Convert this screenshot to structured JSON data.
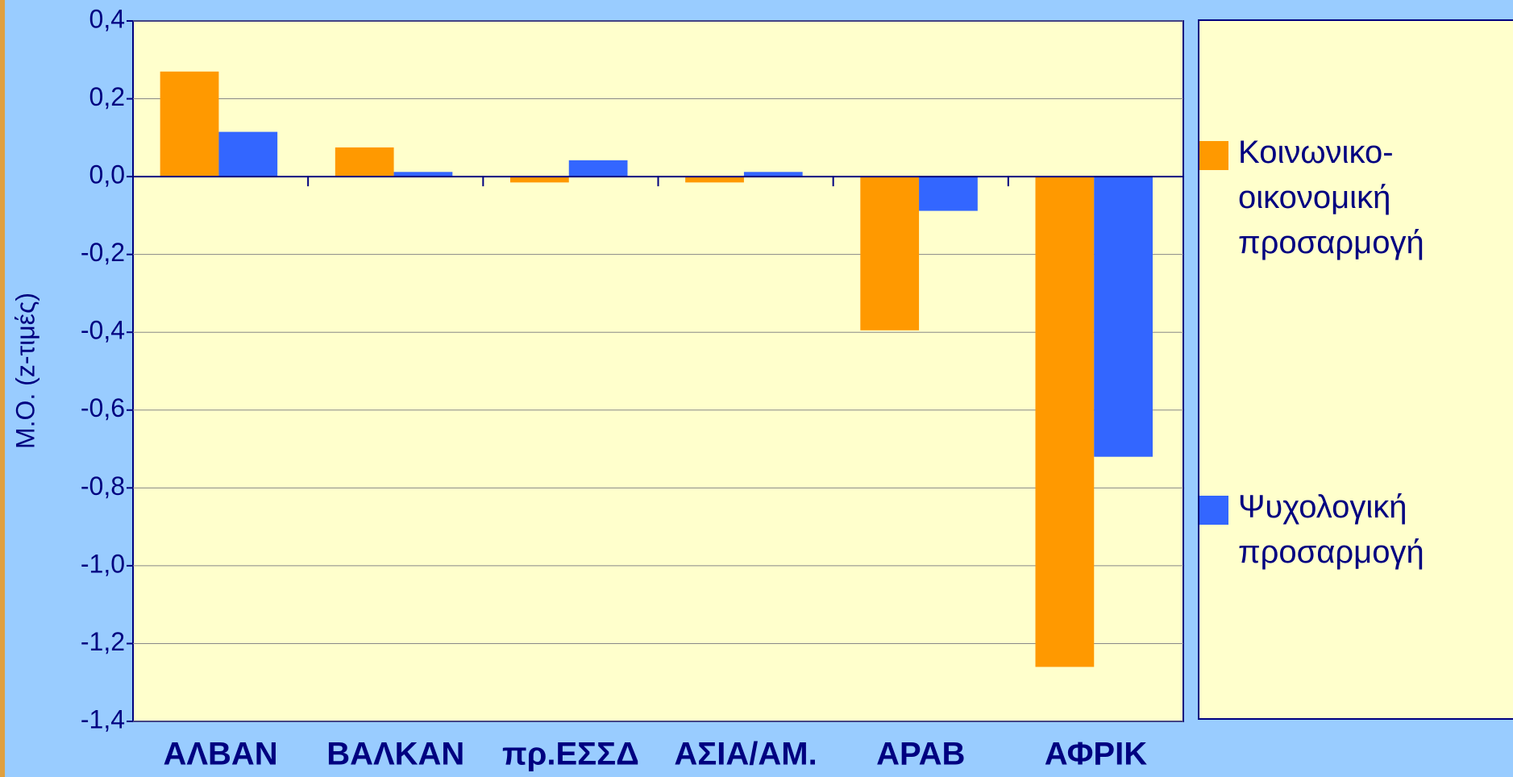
{
  "chart_data": {
    "type": "bar",
    "y_label": "Μ.Ο. (z-τιμές)",
    "categories": [
      "ΑΛΒΑΝ",
      "ΒΑΛΚΑΝ",
      "πρ.ΕΣΣΔ",
      "ΑΣΙΑ/ΑΜ.",
      "ΑΡΑΒ",
      "ΑΦΡΙΚ"
    ],
    "series": [
      {
        "name": "Κοινωνικο-οικονομική προσαρμογή",
        "color": "#ff9900",
        "values": [
          0.27,
          0.075,
          -0.015,
          -0.015,
          -0.395,
          -1.26
        ]
      },
      {
        "name": "Ψυχολογική προσαρμογή",
        "color": "#3366ff",
        "values": [
          0.115,
          0.012,
          0.042,
          0.012,
          -0.088,
          -0.72
        ]
      }
    ],
    "ylim": [
      -1.4,
      0.4
    ],
    "yticks": [
      {
        "value": -1.4,
        "label": "-1,4"
      },
      {
        "value": -1.2,
        "label": "-1,2"
      },
      {
        "value": -1.0,
        "label": "-1,0"
      },
      {
        "value": -0.8,
        "label": "-0,8"
      },
      {
        "value": -0.6,
        "label": "-0,6"
      },
      {
        "value": -0.4,
        "label": "-0,4"
      },
      {
        "value": -0.2,
        "label": "-0,2"
      },
      {
        "value": 0,
        "label": "0,0"
      },
      {
        "value": 0.2,
        "label": "0,2"
      },
      {
        "value": 0.4,
        "label": "0,4"
      }
    ],
    "grid": true,
    "legend": "right"
  }
}
